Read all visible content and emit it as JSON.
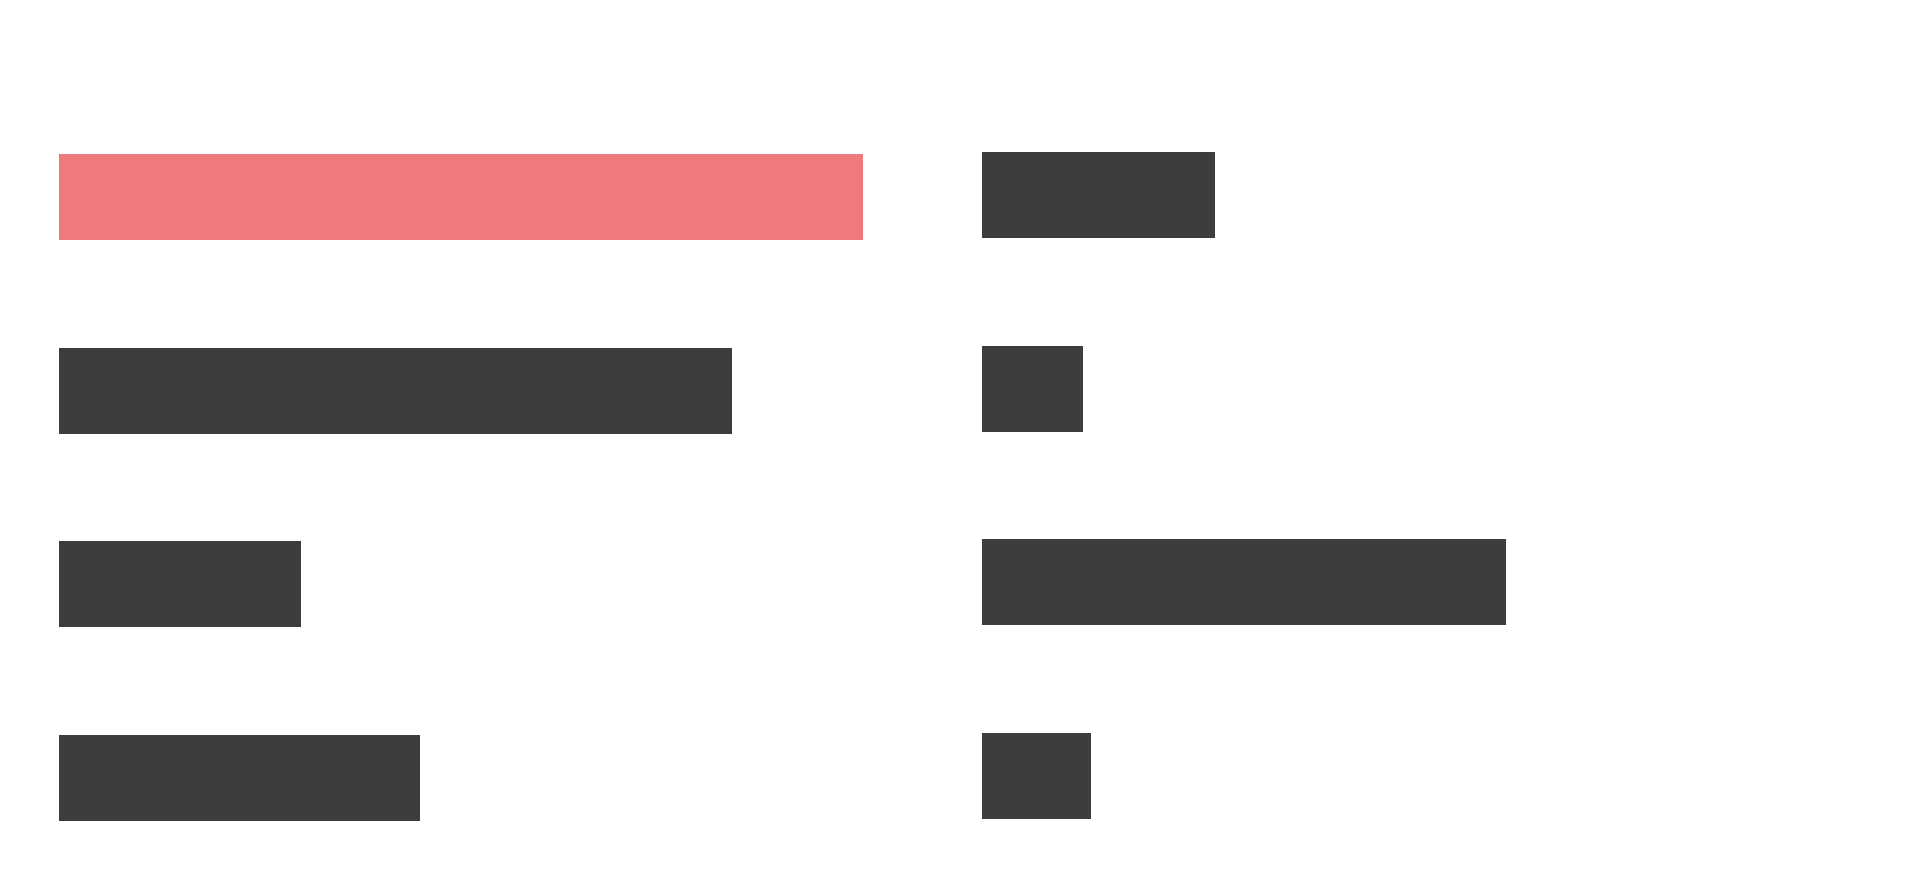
{
  "colors": {
    "background": "#ffffff",
    "highlight": "#ef7a7b",
    "default": "#3d3d3d"
  },
  "left_column": {
    "bars": [
      {
        "level": 1.0,
        "color": "#ef7a7b"
      },
      {
        "level": 0.837,
        "color": "#3d3d3d"
      },
      {
        "level": 0.301,
        "color": "#3d3d3d"
      },
      {
        "level": 0.449,
        "color": "#3d3d3d"
      }
    ]
  },
  "right_column": {
    "bars": [
      {
        "level": 0.29,
        "color": "#3d3d3d"
      },
      {
        "level": 0.125,
        "color": "#3d3d3d"
      },
      {
        "level": 0.652,
        "color": "#3d3d3d"
      },
      {
        "level": 0.135,
        "color": "#3d3d3d"
      }
    ]
  }
}
